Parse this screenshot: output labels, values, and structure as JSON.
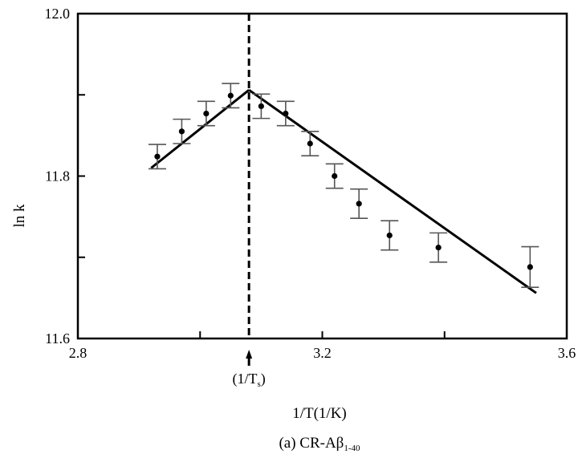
{
  "chart_data": {
    "type": "scatter",
    "xlabel": "1/T(1/K)",
    "ylabel": "ln k",
    "caption": "(a) CR-Aβ",
    "caption_subscript": "1-40",
    "xlim": [
      2.8,
      3.6
    ],
    "ylim": [
      11.6,
      12.0
    ],
    "x_ticks": [
      2.8,
      3.2,
      3.6
    ],
    "x_tick_labels": [
      "2.8",
      "3.2",
      "3.6"
    ],
    "x_minor_ticks": [
      3.0,
      3.4
    ],
    "y_ticks": [
      11.6,
      11.8,
      12.0
    ],
    "y_tick_labels": [
      "11.6",
      "11.8",
      "12.0"
    ],
    "y_minor_ticks": [
      11.7,
      11.9
    ],
    "grid": false,
    "transition_marker": {
      "x": 3.08,
      "label": "(1/T",
      "label_subscript": "s",
      "label_close": ")",
      "arrow": "up",
      "line_style": "dashed"
    },
    "series": [
      {
        "points": [
          {
            "x": 2.93,
            "y": 11.824,
            "err": 0.015
          },
          {
            "x": 2.97,
            "y": 11.855,
            "err": 0.015
          },
          {
            "x": 3.01,
            "y": 11.877,
            "err": 0.015
          },
          {
            "x": 3.05,
            "y": 11.899,
            "err": 0.015
          },
          {
            "x": 3.1,
            "y": 11.886,
            "err": 0.015
          },
          {
            "x": 3.14,
            "y": 11.877,
            "err": 0.015
          },
          {
            "x": 3.18,
            "y": 11.84,
            "err": 0.015
          },
          {
            "x": 3.22,
            "y": 11.8,
            "err": 0.015
          },
          {
            "x": 3.26,
            "y": 11.766,
            "err": 0.018
          },
          {
            "x": 3.31,
            "y": 11.727,
            "err": 0.018
          },
          {
            "x": 3.39,
            "y": 11.712,
            "err": 0.018
          },
          {
            "x": 3.54,
            "y": 11.688,
            "err": 0.025
          }
        ],
        "fit_lines": [
          {
            "from": [
              2.92,
              11.81
            ],
            "to": [
              3.08,
              11.906
            ]
          },
          {
            "from": [
              3.08,
              11.906
            ],
            "to": [
              3.55,
              11.656
            ]
          }
        ]
      }
    ]
  }
}
